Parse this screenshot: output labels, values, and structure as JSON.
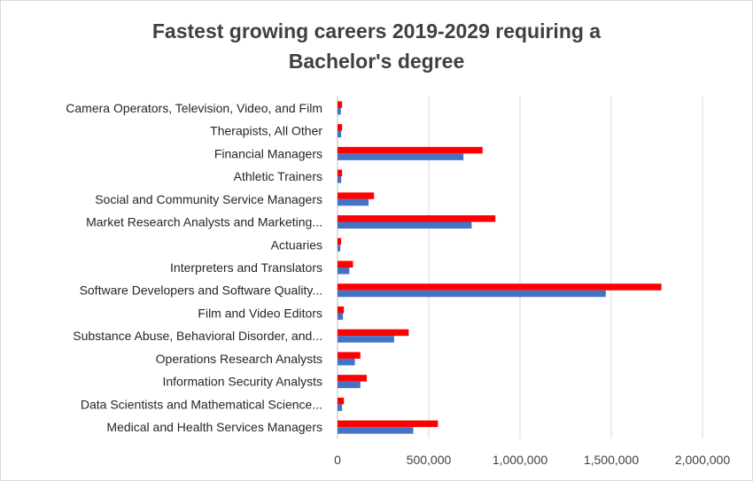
{
  "chart_data": {
    "type": "bar",
    "orientation": "horizontal",
    "title_line1": "Fastest growing careers 2019-2029 requiring a",
    "title_line2": "Bachelor's degree",
    "categories": [
      "Camera Operators, Television, Video, and Film",
      "Therapists, All Other",
      "Financial Managers",
      "Athletic Trainers",
      "Social and Community Service Managers",
      "Market Research Analysts and Marketing...",
      "Actuaries",
      "Interpreters and Translators",
      "Software Developers and Software Quality...",
      "Film and Video Editors",
      "Substance Abuse, Behavioral Disorder, and...",
      "Operations Research Analysts",
      "Information Security Analysts",
      "Data Scientists and Mathematical Science...",
      "Medical and Health Services Managers"
    ],
    "series": [
      {
        "color": "#ff0000",
        "values": [
          25000,
          25000,
          795000,
          25000,
          200000,
          865000,
          20000,
          85000,
          1775000,
          35000,
          390000,
          125000,
          160000,
          35000,
          550000
        ]
      },
      {
        "color": "#4472c4",
        "values": [
          18000,
          20000,
          690000,
          20000,
          170000,
          735000,
          15000,
          65000,
          1470000,
          30000,
          310000,
          95000,
          125000,
          25000,
          415000
        ]
      }
    ],
    "xlim": [
      0,
      2000000
    ],
    "xticks": [
      "0",
      "500,000",
      "1,000,000",
      "1,500,000",
      "2,000,000"
    ],
    "grid": true,
    "legend": "none"
  }
}
